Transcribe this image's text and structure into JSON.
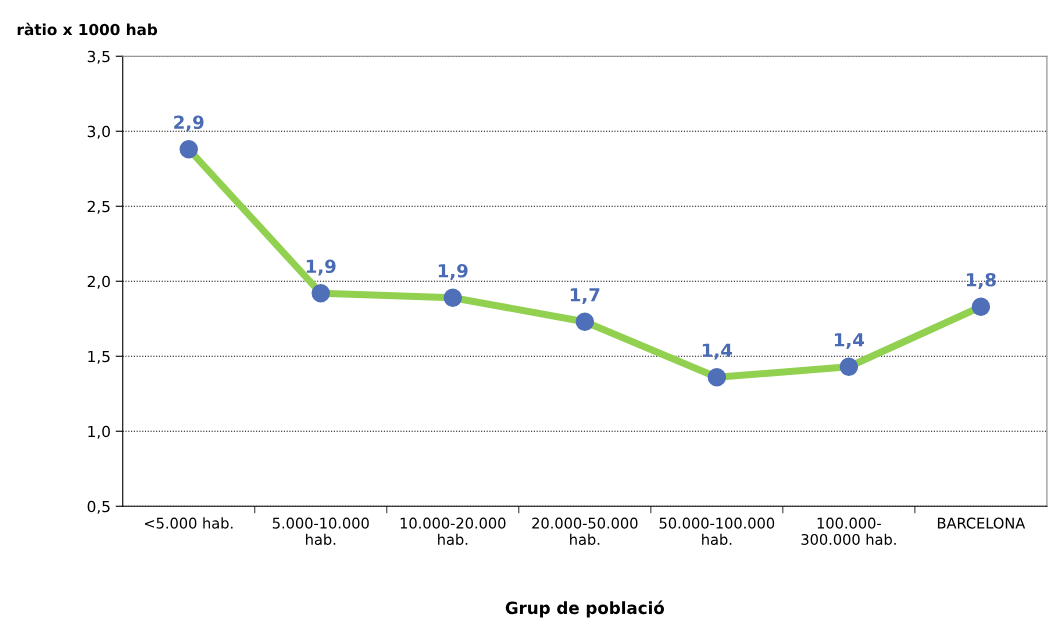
{
  "chart_data": {
    "type": "line",
    "ylabel": "ràtio x 1000 hab",
    "xlabel": "Grup de població",
    "categories": [
      "<5.000 hab.",
      "5.000-10.000\nhab.",
      "10.000-20.000\nhab.",
      "20.000-50.000\nhab.",
      "50.000-100.000\nhab.",
      "100.000-\n300.000 hab.",
      "BARCELONA"
    ],
    "series": [
      {
        "color": "#92d050",
        "colors": [
          "#4f6fb8",
          "#4f6fb8",
          "#4f6fb8",
          "#4f6fb8",
          "#4f6fb8",
          "#4f6fb8",
          "#4f6fb8"
        ],
        "values": [
          2.88,
          1.92,
          1.89,
          1.73,
          1.36,
          1.43,
          1.83
        ],
        "value_labels": [
          "2,9",
          "1,9",
          "1,9",
          "1,7",
          "1,4",
          "1,4",
          "1,8"
        ]
      }
    ],
    "ylim": [
      0.5,
      3.5
    ],
    "yticks": [
      {
        "value": 0.5,
        "label": "0,5"
      },
      {
        "value": 1.0,
        "label": "1,0"
      },
      {
        "value": 1.5,
        "label": "1,5"
      },
      {
        "value": 2.0,
        "label": "2,0"
      },
      {
        "value": 2.5,
        "label": "2,5"
      },
      {
        "value": 3.0,
        "label": "3,0"
      },
      {
        "value": 3.5,
        "label": "3,5"
      }
    ],
    "grid": "y",
    "marker": "circle",
    "line_style": "solid",
    "legend": false
  }
}
